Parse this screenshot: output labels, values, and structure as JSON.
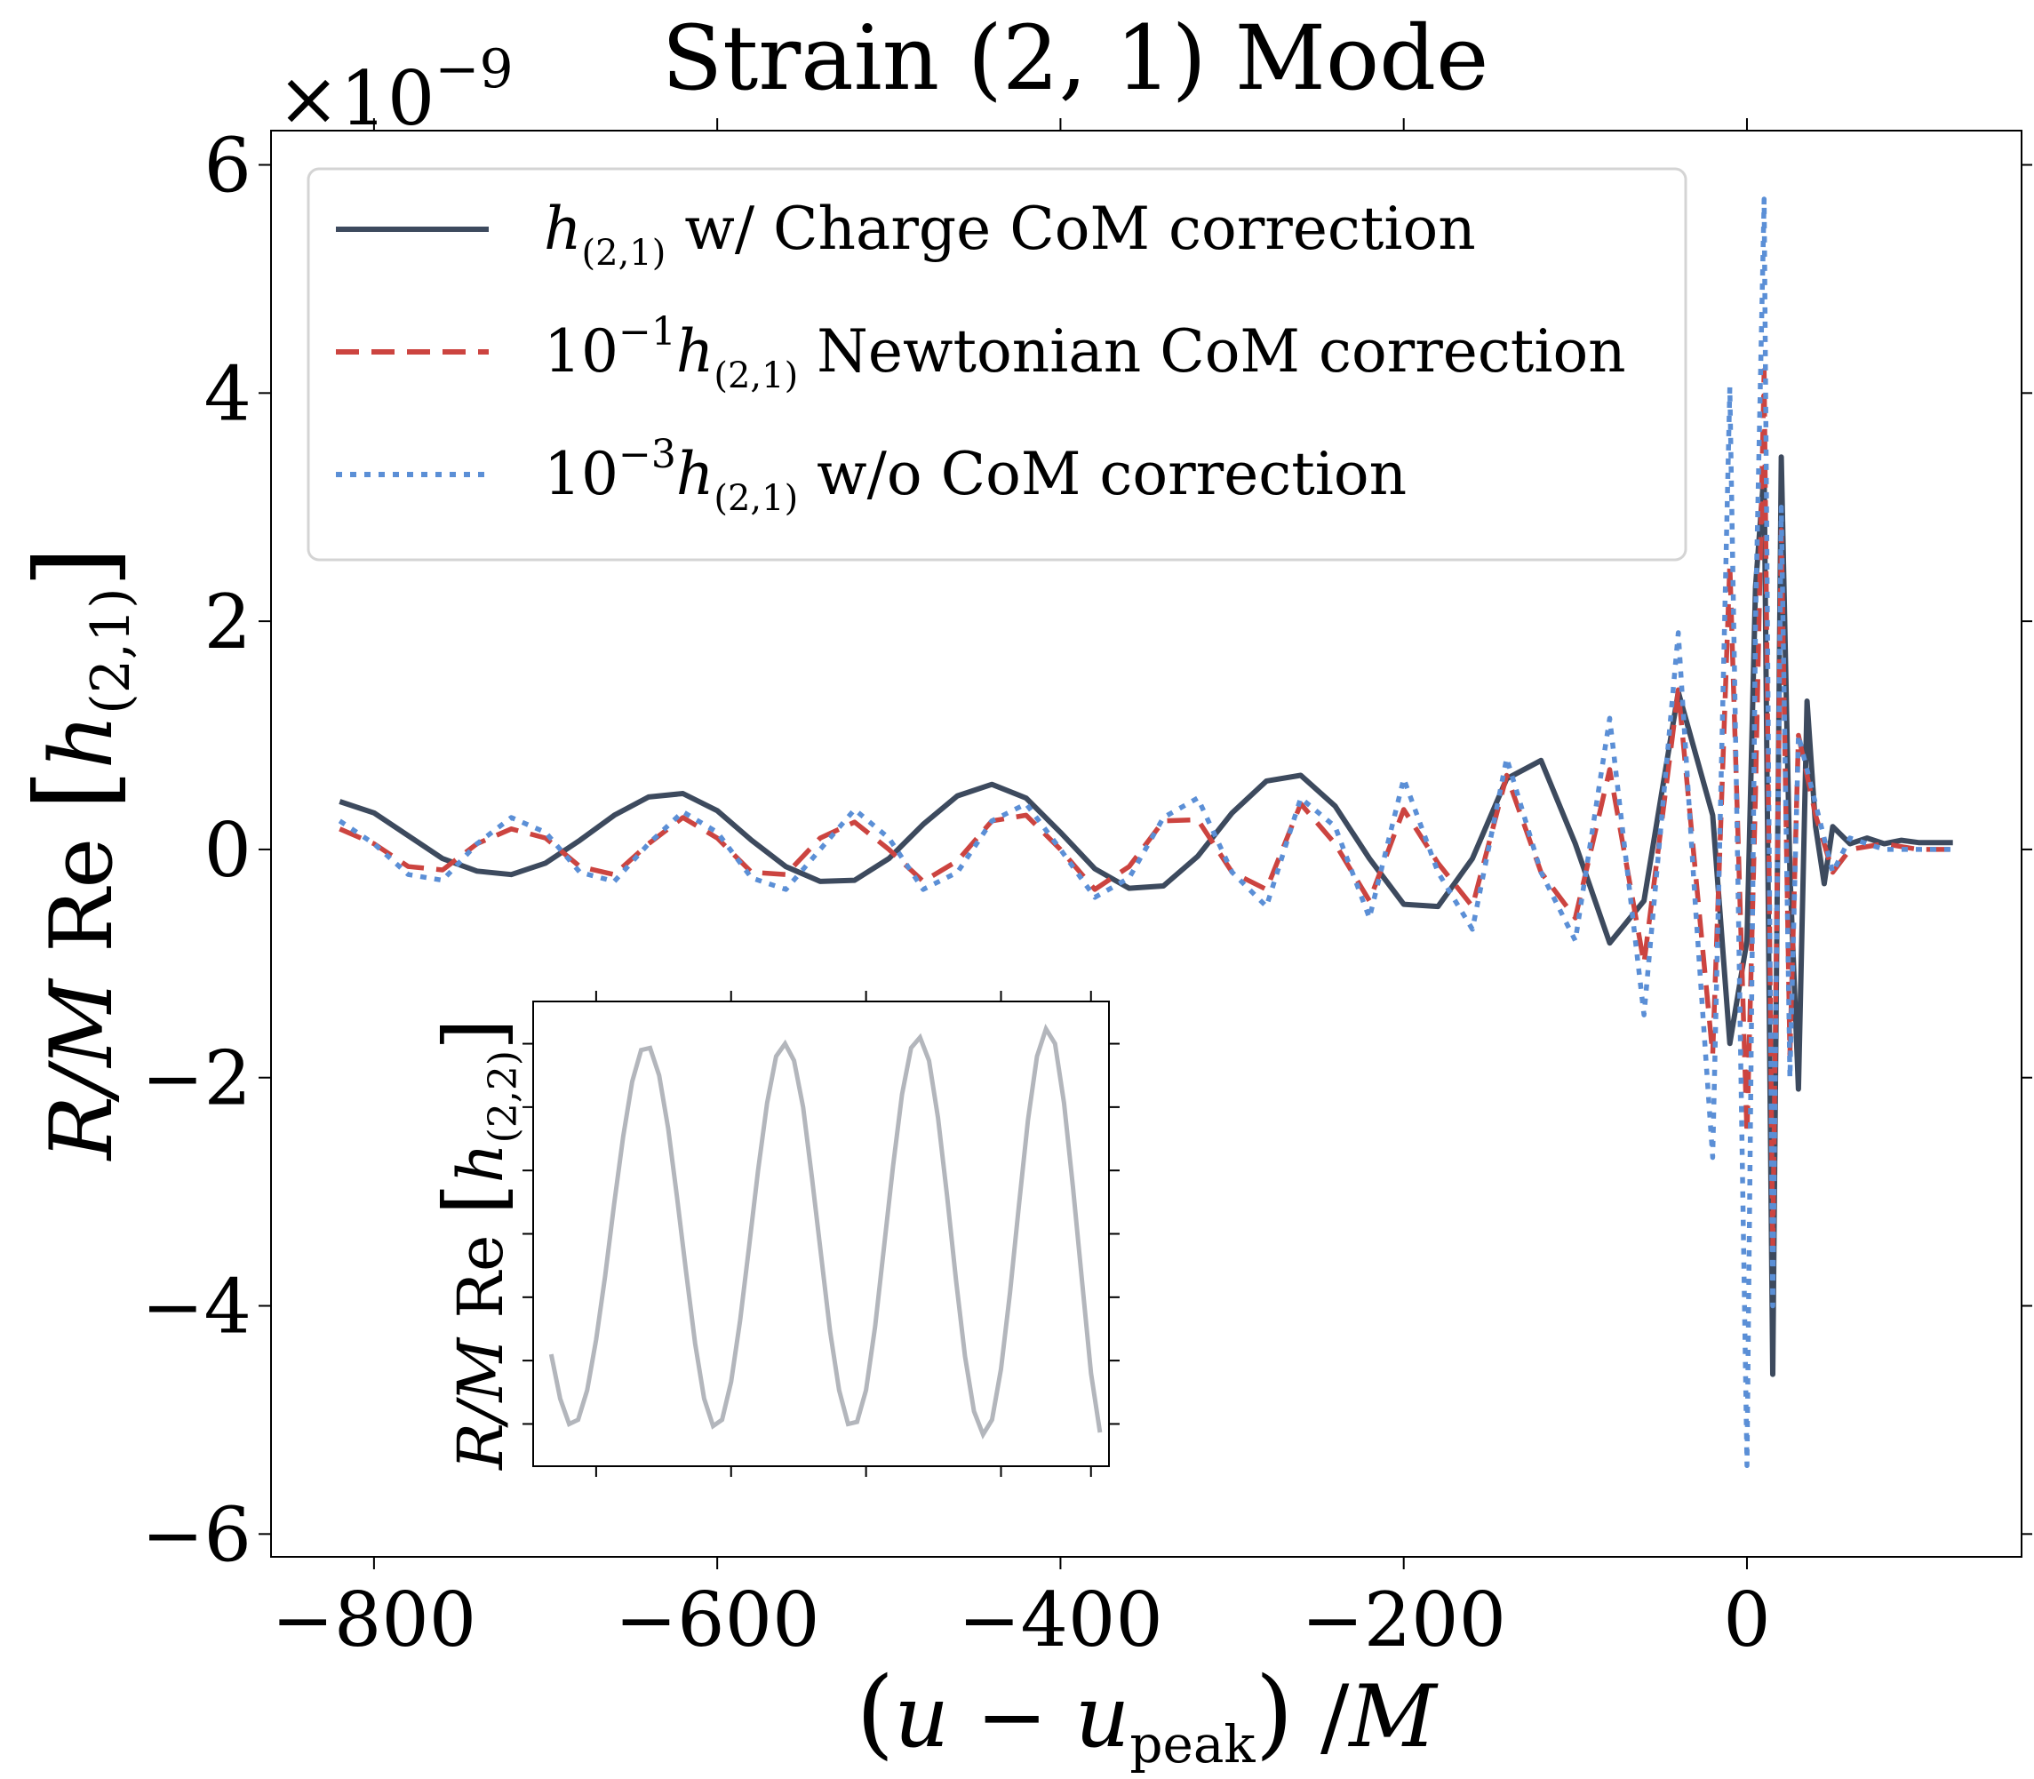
{
  "chart_data": {
    "type": "line",
    "title": "Strain (2, 1) Mode",
    "offset_label": "×10",
    "offset_exponent": "−9",
    "xlabel": {
      "open": "(",
      "u": "u",
      "minus": " − ",
      "u2": "u",
      "sub": "peak",
      "close": ")",
      "slash": " /",
      "M": "M"
    },
    "ylabel": {
      "RM": "R/M",
      "Re": " Re ",
      "lb": "[",
      "h": "h",
      "sub": "(2,1)",
      "rb": "]"
    },
    "xlim": [
      -860,
      160
    ],
    "ylim": [
      -6.2,
      6.3
    ],
    "x_ticks": [
      -800,
      -600,
      -400,
      -200,
      0
    ],
    "x_tick_labels": [
      "−800",
      "−600",
      "−400",
      "−200",
      "0"
    ],
    "y_ticks": [
      -6,
      -4,
      -2,
      0,
      2,
      4,
      6
    ],
    "y_tick_labels": [
      "−6",
      "−4",
      "−2",
      "0",
      "2",
      "4",
      "6"
    ],
    "grid": false,
    "legend_position": "top-left",
    "series": [
      {
        "id": "charge",
        "legend_pre": "",
        "legend_exp": "",
        "legend_h": "h",
        "legend_sub": "(2,1)",
        "legend_post": " w/ Charge CoM correction",
        "color": "#3d4a5e",
        "style": "solid",
        "x": [
          -820,
          -800,
          -780,
          -760,
          -740,
          -720,
          -700,
          -680,
          -660,
          -640,
          -620,
          -600,
          -580,
          -560,
          -540,
          -520,
          -500,
          -480,
          -460,
          -440,
          -420,
          -400,
          -380,
          -360,
          -340,
          -320,
          -300,
          -280,
          -260,
          -240,
          -220,
          -200,
          -180,
          -160,
          -140,
          -120,
          -100,
          -80,
          -60,
          -40,
          -20,
          -10,
          0,
          5,
          10,
          15,
          20,
          25,
          30,
          35,
          40,
          45,
          50,
          60,
          70,
          80,
          90,
          100,
          120
        ],
        "y": [
          0.42,
          0.32,
          0.12,
          -0.08,
          -0.19,
          -0.22,
          -0.12,
          0.08,
          0.3,
          0.46,
          0.49,
          0.34,
          0.08,
          -0.15,
          -0.28,
          -0.27,
          -0.08,
          0.22,
          0.47,
          0.57,
          0.45,
          0.15,
          -0.17,
          -0.34,
          -0.32,
          -0.06,
          0.32,
          0.6,
          0.65,
          0.38,
          -0.08,
          -0.48,
          -0.5,
          -0.08,
          0.62,
          0.78,
          0.05,
          -0.82,
          -0.45,
          1.38,
          0.3,
          -1.7,
          -0.8,
          2.3,
          3.32,
          -4.6,
          3.44,
          -0.2,
          -2.1,
          1.3,
          0.2,
          -0.3,
          0.2,
          0.05,
          0.1,
          0.05,
          0.08,
          0.06,
          0.06
        ]
      },
      {
        "id": "newtonian",
        "legend_pre": "10",
        "legend_exp": "−1",
        "legend_h": "h",
        "legend_sub": "(2,1)",
        "legend_post": " Newtonian CoM correction",
        "color": "#cc4440",
        "style": "dashed",
        "x": [
          -820,
          -800,
          -780,
          -760,
          -740,
          -720,
          -700,
          -680,
          -660,
          -640,
          -620,
          -600,
          -580,
          -560,
          -540,
          -520,
          -500,
          -480,
          -460,
          -440,
          -420,
          -400,
          -380,
          -360,
          -340,
          -320,
          -300,
          -280,
          -260,
          -240,
          -220,
          -200,
          -180,
          -160,
          -140,
          -120,
          -100,
          -80,
          -60,
          -40,
          -30,
          -20,
          -10,
          0,
          5,
          10,
          15,
          20,
          25,
          30,
          40,
          50,
          60,
          80,
          100,
          120
        ],
        "y": [
          0.18,
          0.05,
          -0.15,
          -0.18,
          0.05,
          0.18,
          0.1,
          -0.15,
          -0.22,
          0.05,
          0.28,
          0.1,
          -0.2,
          -0.22,
          0.1,
          0.24,
          0.0,
          -0.28,
          -0.1,
          0.25,
          0.3,
          0.0,
          -0.35,
          -0.15,
          0.25,
          0.26,
          -0.2,
          -0.35,
          0.4,
          0.05,
          -0.45,
          0.35,
          -0.12,
          -0.5,
          0.65,
          -0.2,
          -0.6,
          0.7,
          -1.0,
          1.4,
          -0.2,
          -1.8,
          2.5,
          -2.5,
          0.5,
          4.2,
          -3.5,
          2.8,
          -1.8,
          1.0,
          0.3,
          -0.2,
          0.0,
          0.05,
          0.0,
          0.0
        ]
      },
      {
        "id": "nocom",
        "legend_pre": "10",
        "legend_exp": "−3",
        "legend_h": "h",
        "legend_sub": "(2,1)",
        "legend_post": " w/o CoM correction",
        "color": "#5b8fd6",
        "style": "dotted",
        "x": [
          -820,
          -800,
          -780,
          -760,
          -740,
          -720,
          -700,
          -680,
          -660,
          -640,
          -620,
          -600,
          -580,
          -560,
          -540,
          -520,
          -500,
          -480,
          -460,
          -440,
          -420,
          -400,
          -380,
          -360,
          -340,
          -320,
          -300,
          -280,
          -260,
          -240,
          -220,
          -200,
          -180,
          -160,
          -140,
          -120,
          -100,
          -80,
          -60,
          -40,
          -30,
          -20,
          -10,
          -5,
          0,
          5,
          10,
          15,
          20,
          25,
          30,
          40,
          50,
          60,
          80,
          100,
          120
        ],
        "y": [
          0.25,
          0.05,
          -0.22,
          -0.27,
          0.05,
          0.28,
          0.15,
          -0.2,
          -0.28,
          0.05,
          0.33,
          0.15,
          -0.25,
          -0.35,
          0.0,
          0.35,
          0.1,
          -0.35,
          -0.2,
          0.25,
          0.4,
          0.0,
          -0.42,
          -0.25,
          0.28,
          0.45,
          -0.2,
          -0.5,
          0.45,
          0.2,
          -0.6,
          0.62,
          -0.2,
          -0.7,
          0.8,
          -0.2,
          -0.8,
          1.15,
          -1.45,
          1.9,
          -0.5,
          -2.7,
          4.05,
          -0.5,
          -5.4,
          2.0,
          5.7,
          -4.0,
          3.0,
          -2.0,
          1.0,
          0.4,
          -0.2,
          0.1,
          0.0,
          0.0,
          0.0
        ]
      }
    ],
    "inset": {
      "ylabel": {
        "RM": "R/M",
        "Re": " Re ",
        "lb": "[",
        "h": "h",
        "sub": "(2,2)",
        "rb": "]"
      },
      "color": "#b3b6bc",
      "style": "solid",
      "xlim": [
        -710,
        -390
      ],
      "ylim": [
        -1.1,
        1.1
      ],
      "x_tick_values": [
        -675,
        -600,
        -525,
        -450,
        -400
      ],
      "y_tick_values": [
        -0.9,
        -0.6,
        -0.3,
        0.0,
        0.3,
        0.6,
        0.9
      ],
      "x": [
        -700,
        -695,
        -690,
        -685,
        -680,
        -675,
        -670,
        -665,
        -660,
        -655,
        -650,
        -645,
        -640,
        -635,
        -630,
        -625,
        -620,
        -615,
        -610,
        -605,
        -600,
        -595,
        -590,
        -585,
        -580,
        -575,
        -570,
        -565,
        -560,
        -555,
        -550,
        -545,
        -540,
        -535,
        -530,
        -525,
        -520,
        -515,
        -510,
        -505,
        -500,
        -495,
        -490,
        -485,
        -480,
        -475,
        -470,
        -465,
        -460,
        -455,
        -450,
        -445,
        -440,
        -435,
        -430,
        -425,
        -420,
        -415,
        -410,
        -405,
        -400,
        -395
      ],
      "y": [
        -0.57,
        -0.78,
        -0.9,
        -0.88,
        -0.74,
        -0.5,
        -0.2,
        0.14,
        0.46,
        0.72,
        0.87,
        0.88,
        0.75,
        0.5,
        0.17,
        -0.18,
        -0.52,
        -0.78,
        -0.91,
        -0.88,
        -0.7,
        -0.41,
        -0.06,
        0.3,
        0.62,
        0.84,
        0.9,
        0.82,
        0.6,
        0.26,
        -0.1,
        -0.46,
        -0.74,
        -0.9,
        -0.89,
        -0.74,
        -0.44,
        -0.06,
        0.32,
        0.66,
        0.88,
        0.93,
        0.82,
        0.55,
        0.18,
        -0.22,
        -0.58,
        -0.84,
        -0.95,
        -0.88,
        -0.64,
        -0.28,
        0.14,
        0.54,
        0.84,
        0.97,
        0.9,
        0.62,
        0.22,
        -0.22,
        -0.66,
        -0.94
      ]
    }
  }
}
